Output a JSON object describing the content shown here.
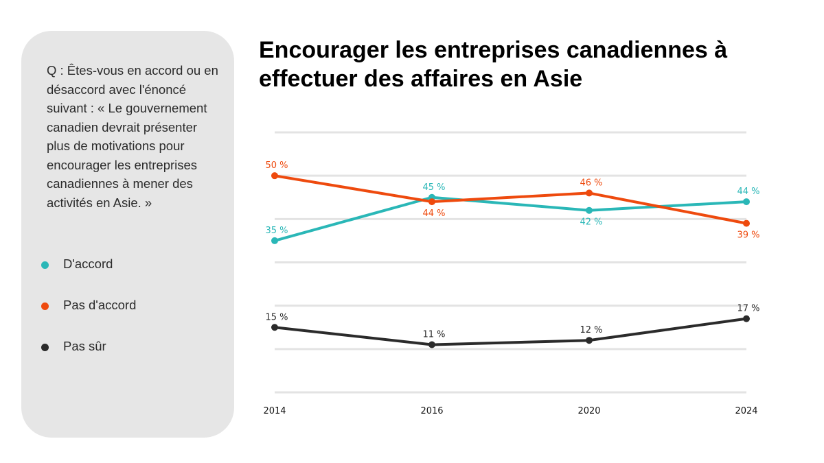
{
  "panel": {
    "question": "Q : Êtes-vous en accord ou en désaccord avec l'énoncé suivant : « Le gouvernement canadien devrait présenter plus de motivations pour encourager les entreprises canadiennes à mener des activités en Asie. »"
  },
  "legend": [
    {
      "label": "D'accord",
      "color": "#2ab7b7"
    },
    {
      "label": "Pas d'accord",
      "color": "#ee4a0e"
    },
    {
      "label": "Pas sûr",
      "color": "#2b2b2b"
    }
  ],
  "chart_data": {
    "type": "line",
    "title": "Encourager les entreprises canadiennes à effectuer des affaires en Asie",
    "categories": [
      "2014",
      "2016",
      "2020",
      "2024"
    ],
    "series": [
      {
        "name": "D'accord",
        "color": "#2ab7b7",
        "values": [
          35,
          45,
          42,
          44
        ],
        "labels": [
          "35 %",
          "45 %",
          "42 %",
          "44 %"
        ],
        "label_pos": [
          "above",
          "above",
          "below",
          "above"
        ]
      },
      {
        "name": "Pas d'accord",
        "color": "#ee4a0e",
        "values": [
          50,
          44,
          46,
          39
        ],
        "labels": [
          "50 %",
          "44 %",
          "46 %",
          "39 %"
        ],
        "label_pos": [
          "above",
          "below",
          "above",
          "below"
        ]
      },
      {
        "name": "Pas sûr",
        "color": "#2b2b2b",
        "values": [
          15,
          11,
          12,
          17
        ],
        "labels": [
          "15 %",
          "11 %",
          "12 %",
          "17 %"
        ],
        "label_pos": [
          "above",
          "above",
          "above",
          "above"
        ]
      }
    ],
    "ylim": [
      0,
      60
    ],
    "grid": true,
    "legend_placement": "left"
  }
}
